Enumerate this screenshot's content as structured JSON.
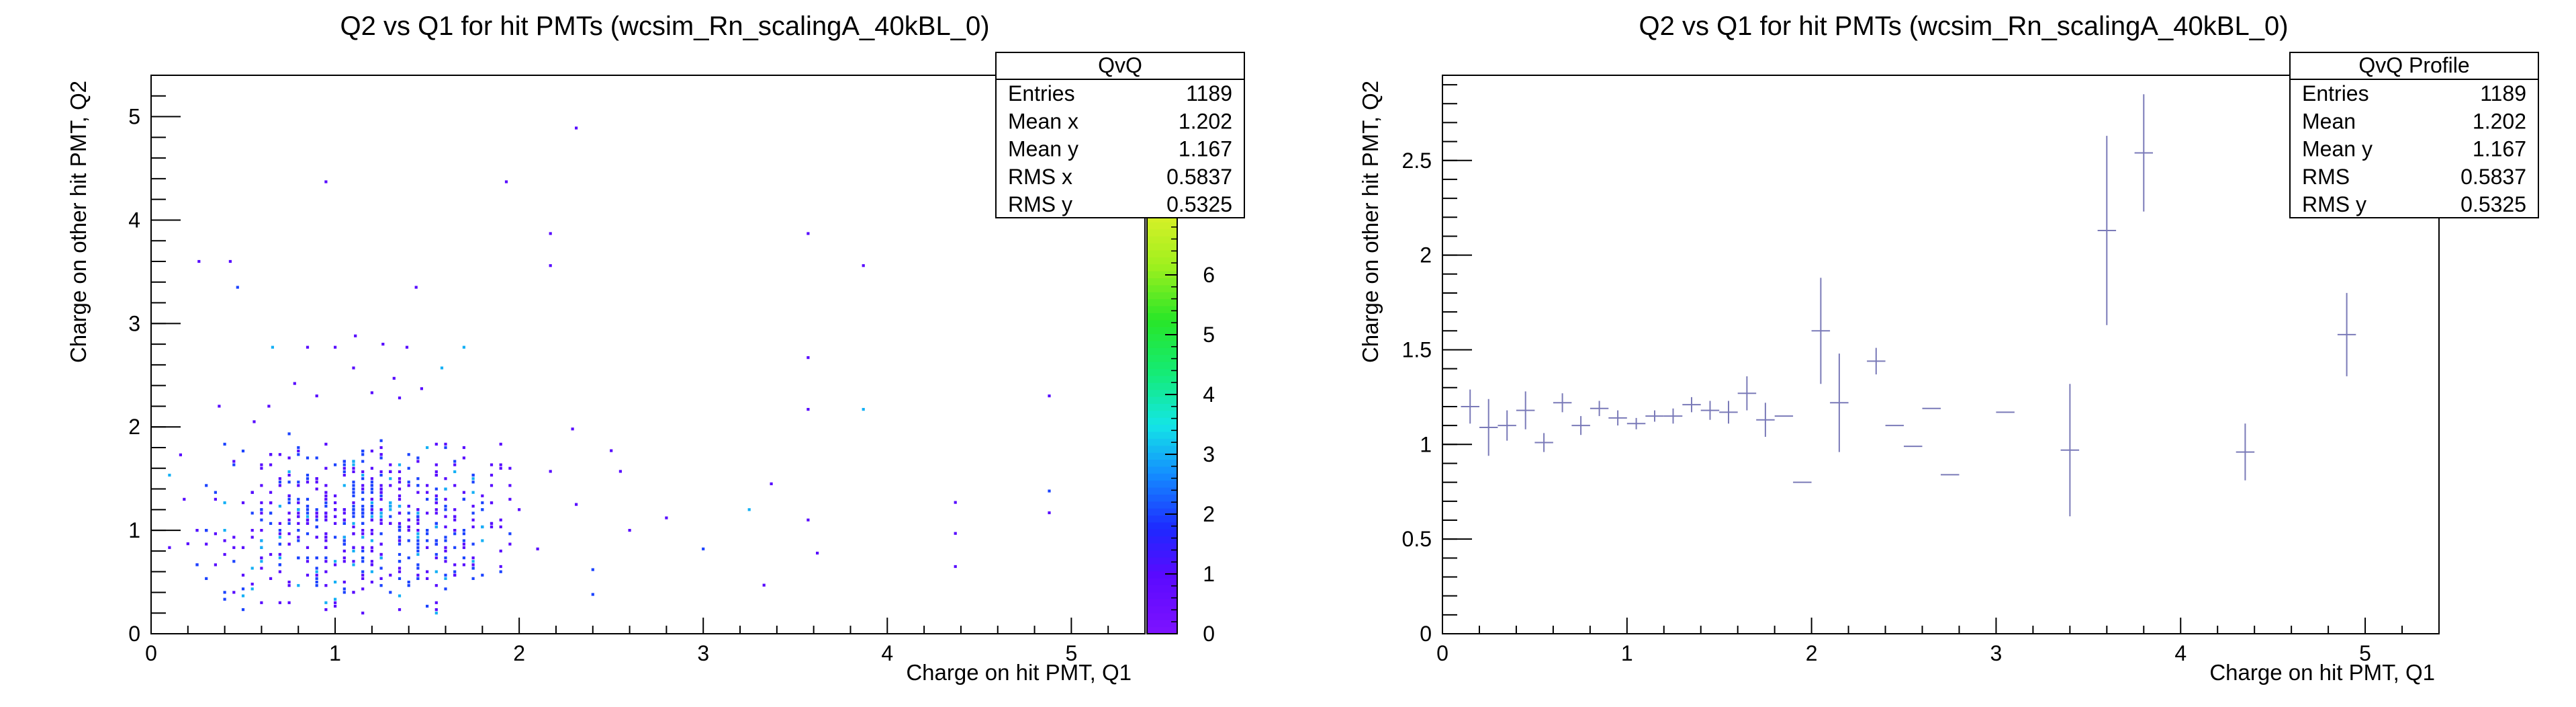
{
  "chart_data": [
    {
      "type": "heatmap",
      "title": "Q2 vs Q1 for hit PMTs (wcsim_Rn_scalingA_40kBL_0)",
      "xlabel": "Charge on hit PMT, Q1",
      "ylabel": "Charge on other hit PMT, Q2",
      "xlim": [
        0,
        5.4
      ],
      "ylim": [
        0,
        5.4
      ],
      "xticks": [
        "0",
        "1",
        "2",
        "3",
        "4",
        "5"
      ],
      "yticks": [
        "0",
        "1",
        "2",
        "3",
        "4",
        "5"
      ],
      "colorbar": {
        "zlim": [
          0,
          7
        ],
        "ticks": [
          "0",
          "1",
          "2",
          "3",
          "4",
          "5",
          "6"
        ]
      },
      "stats": {
        "name": "QvQ",
        "rows": [
          {
            "label": "Entries",
            "value": "1189"
          },
          {
            "label": "Mean x",
            "value": "1.202"
          },
          {
            "label": "Mean y",
            "value": "1.167"
          },
          {
            "label": "RMS x",
            "value": "0.5837"
          },
          {
            "label": "RMS y",
            "value": "0.5325"
          }
        ]
      },
      "cells": [
        [
          0.26,
          3.6,
          1
        ],
        [
          0.43,
          3.6,
          1
        ],
        [
          0.95,
          4.37,
          1
        ],
        [
          1.93,
          4.37,
          1
        ],
        [
          2.31,
          4.89,
          1
        ],
        [
          2.17,
          3.87,
          1
        ],
        [
          2.17,
          3.56,
          1
        ],
        [
          1.44,
          3.35,
          1
        ],
        [
          0.47,
          3.35,
          2
        ],
        [
          3.57,
          3.87,
          1
        ],
        [
          3.87,
          3.56,
          1
        ],
        [
          0.66,
          2.77,
          3
        ],
        [
          1.11,
          2.88,
          1
        ],
        [
          1.26,
          2.8,
          1
        ],
        [
          1.7,
          2.77,
          3
        ],
        [
          1.39,
          2.77,
          1
        ],
        [
          1.0,
          2.77,
          1
        ],
        [
          0.85,
          2.77,
          1
        ],
        [
          1.58,
          2.57,
          3
        ],
        [
          3.57,
          2.67,
          1
        ],
        [
          0.78,
          2.42,
          1
        ],
        [
          1.1,
          2.57,
          1
        ],
        [
          1.32,
          2.47,
          1
        ],
        [
          0.37,
          2.2,
          1
        ],
        [
          0.64,
          2.2,
          1
        ],
        [
          0.9,
          2.3,
          1
        ],
        [
          1.2,
          2.33,
          1
        ],
        [
          1.35,
          2.28,
          1
        ],
        [
          1.47,
          2.37,
          1
        ],
        [
          0.56,
          2.05,
          1
        ],
        [
          3.57,
          2.17,
          1
        ],
        [
          3.87,
          2.17,
          3
        ],
        [
          4.88,
          2.3,
          1
        ],
        [
          2.29,
          1.98,
          1
        ],
        [
          2.5,
          1.77,
          1
        ],
        [
          2.17,
          1.57,
          1
        ],
        [
          2.55,
          1.57,
          1
        ],
        [
          3.37,
          1.45,
          1
        ],
        [
          2.31,
          1.25,
          1
        ],
        [
          2.8,
          1.12,
          1
        ],
        [
          2.6,
          1.0,
          1
        ],
        [
          3.25,
          1.2,
          3
        ],
        [
          3.57,
          1.1,
          1
        ],
        [
          3.62,
          0.78,
          1
        ],
        [
          4.37,
          1.27,
          1
        ],
        [
          4.37,
          0.97,
          1
        ],
        [
          4.37,
          0.65,
          1
        ],
        [
          4.88,
          1.38,
          2
        ],
        [
          4.88,
          1.17,
          1
        ],
        [
          3.33,
          0.47,
          1
        ],
        [
          2.4,
          0.62,
          2
        ],
        [
          2.4,
          0.38,
          2
        ],
        [
          3.0,
          0.82,
          2
        ],
        [
          2.1,
          0.82,
          1
        ],
        [
          2.0,
          1.2,
          1
        ],
        [
          0.16,
          1.73,
          1
        ],
        [
          0.2,
          0.87,
          1
        ],
        [
          0.18,
          1.3,
          1
        ],
        [
          0.55,
          0.48,
          1
        ],
        [
          0.7,
          0.3,
          1
        ],
        [
          1.15,
          0.2,
          1
        ],
        [
          1.55,
          0.3,
          1
        ],
        [
          1.9,
          0.65,
          1
        ],
        [
          1.95,
          1.6,
          1
        ]
      ],
      "cluster": {
        "x_range": [
          0.1,
          1.95
        ],
        "y_range": [
          0.2,
          1.95
        ],
        "center": [
          1.15,
          1.1
        ],
        "spread": [
          0.42,
          0.38
        ],
        "count": 620
      }
    },
    {
      "type": "scatter",
      "title": "Q2 vs Q1 for hit PMTs (wcsim_Rn_scalingA_40kBL_0)",
      "xlabel": "Charge on hit PMT, Q1",
      "ylabel": "Charge on other hit PMT, Q2",
      "xlim": [
        0,
        5.4
      ],
      "ylim": [
        0,
        2.95
      ],
      "xticks": [
        "0",
        "1",
        "2",
        "3",
        "4",
        "5"
      ],
      "yticks": [
        "0",
        "0.5",
        "1",
        "1.5",
        "2",
        "2.5"
      ],
      "color": "#7a7ab8",
      "stats": {
        "name": "QvQ Profile",
        "rows": [
          {
            "label": "Entries",
            "value": "1189"
          },
          {
            "label": "Mean",
            "value": "1.202"
          },
          {
            "label": "Mean y",
            "value": "1.167"
          },
          {
            "label": "RMS",
            "value": "0.5837"
          },
          {
            "label": "RMS y",
            "value": "0.5325"
          }
        ]
      },
      "points": [
        {
          "x": 0.15,
          "y": 1.2,
          "yerr": 0.09
        },
        {
          "x": 0.25,
          "y": 1.09,
          "yerr": 0.15
        },
        {
          "x": 0.35,
          "y": 1.1,
          "yerr": 0.08
        },
        {
          "x": 0.45,
          "y": 1.18,
          "yerr": 0.1
        },
        {
          "x": 0.55,
          "y": 1.01,
          "yerr": 0.05
        },
        {
          "x": 0.65,
          "y": 1.22,
          "yerr": 0.05
        },
        {
          "x": 0.75,
          "y": 1.1,
          "yerr": 0.05
        },
        {
          "x": 0.85,
          "y": 1.19,
          "yerr": 0.04
        },
        {
          "x": 0.95,
          "y": 1.14,
          "yerr": 0.04
        },
        {
          "x": 1.05,
          "y": 1.11,
          "yerr": 0.03
        },
        {
          "x": 1.15,
          "y": 1.15,
          "yerr": 0.03
        },
        {
          "x": 1.25,
          "y": 1.15,
          "yerr": 0.04
        },
        {
          "x": 1.35,
          "y": 1.21,
          "yerr": 0.04
        },
        {
          "x": 1.45,
          "y": 1.18,
          "yerr": 0.05
        },
        {
          "x": 1.55,
          "y": 1.17,
          "yerr": 0.06
        },
        {
          "x": 1.65,
          "y": 1.27,
          "yerr": 0.09
        },
        {
          "x": 1.75,
          "y": 1.13,
          "yerr": 0.09
        },
        {
          "x": 1.85,
          "y": 1.15,
          "yerr": 0.0
        },
        {
          "x": 1.95,
          "y": 0.8,
          "yerr": 0.0
        },
        {
          "x": 2.05,
          "y": 1.6,
          "yerr": 0.28
        },
        {
          "x": 2.15,
          "y": 1.22,
          "yerr": 0.26
        },
        {
          "x": 2.35,
          "y": 1.44,
          "yerr": 0.07
        },
        {
          "x": 2.45,
          "y": 1.1,
          "yerr": 0.0
        },
        {
          "x": 2.55,
          "y": 0.99,
          "yerr": 0.0
        },
        {
          "x": 2.65,
          "y": 1.19,
          "yerr": 0.0
        },
        {
          "x": 2.75,
          "y": 0.84,
          "yerr": 0.0
        },
        {
          "x": 3.05,
          "y": 1.17,
          "yerr": 0.0
        },
        {
          "x": 3.4,
          "y": 0.97,
          "yerr": 0.35
        },
        {
          "x": 3.6,
          "y": 2.13,
          "yerr": 0.5
        },
        {
          "x": 3.8,
          "y": 2.54,
          "yerr": 0.31
        },
        {
          "x": 4.35,
          "y": 0.96,
          "yerr": 0.15
        },
        {
          "x": 4.9,
          "y": 1.58,
          "yerr": 0.22
        }
      ]
    }
  ]
}
